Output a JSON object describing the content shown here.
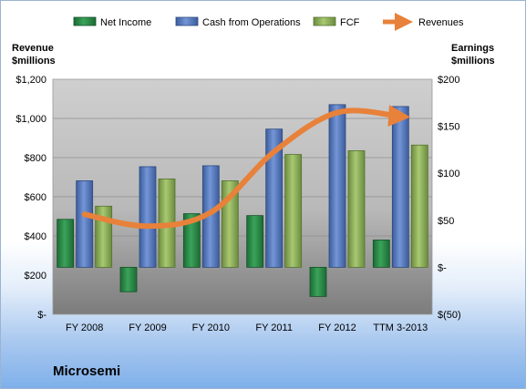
{
  "company": "Microsemi",
  "chart_data": {
    "type": "bar",
    "categories": [
      "FY 2008",
      "FY 2009",
      "FY 2010",
      "FY 2011",
      "FY 2012",
      "TTM 3-2013"
    ],
    "left_axis": {
      "label_line1": "Revenue",
      "label_line2": "$millions",
      "range": [
        0,
        1200
      ],
      "ticks": [
        0,
        200,
        400,
        600,
        800,
        1000,
        1200
      ],
      "tick_labels": [
        "$-",
        "$200",
        "$400",
        "$600",
        "$800",
        "$1,000",
        "$1,200"
      ]
    },
    "right_axis": {
      "label_line1": "Earnings",
      "label_line2": "$millions",
      "range": [
        -50,
        200
      ],
      "ticks": [
        -50,
        0,
        50,
        100,
        150,
        200
      ],
      "tick_labels": [
        "$(50)",
        "$-",
        "$50",
        "$100",
        "$150",
        "$200"
      ]
    },
    "series": [
      {
        "name": "Net Income",
        "axis": "right",
        "kind": "bar",
        "color": "#2e8b4a",
        "values": [
          51,
          -26,
          57,
          55,
          -31,
          29
        ]
      },
      {
        "name": "Cash from Operations",
        "axis": "right",
        "kind": "bar",
        "color": "#5a7fc0",
        "values": [
          92,
          107,
          108,
          147,
          173,
          171
        ]
      },
      {
        "name": "FCF",
        "axis": "right",
        "kind": "bar",
        "color": "#8cb05a",
        "values": [
          65,
          94,
          92,
          120,
          124,
          130
        ]
      },
      {
        "name": "Revenues",
        "axis": "left",
        "kind": "line",
        "color": "#e8813a",
        "values": [
          510,
          450,
          520,
          830,
          1030,
          1010
        ]
      }
    ],
    "legend_position": "top",
    "grid": true
  }
}
